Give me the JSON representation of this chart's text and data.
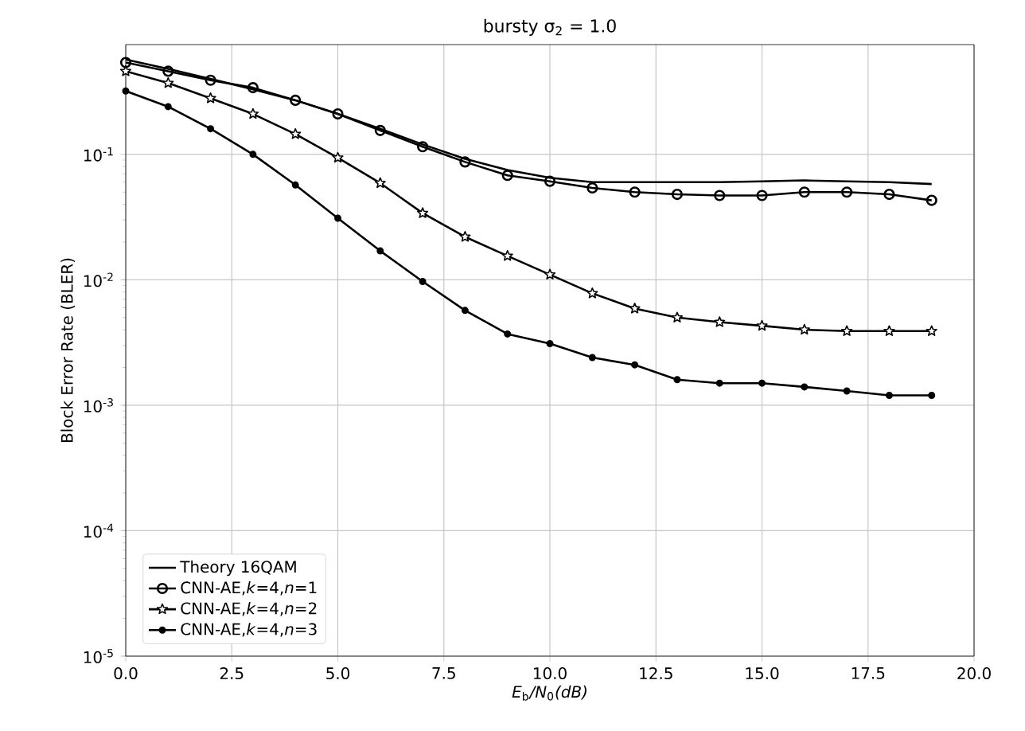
{
  "chart_data": {
    "type": "line",
    "title": "bursty σ$_{2}$ = 1.0",
    "xlabel": "*E*$_{b}$*/N*$_{0}$*(dB)*",
    "ylabel": "Block Error Rate (BLER)",
    "x": [
      0,
      1,
      2,
      3,
      4,
      5,
      6,
      7,
      8,
      9,
      10,
      11,
      12,
      13,
      14,
      15,
      16,
      17,
      18,
      19
    ],
    "series": [
      {
        "name": "Theory 16QAM",
        "color": "#000000",
        "marker": "none",
        "values": [
          0.57,
          0.48,
          0.4,
          0.33,
          0.27,
          0.21,
          0.16,
          0.12,
          0.092,
          0.075,
          0.065,
          0.06,
          0.06,
          0.06,
          0.06,
          0.061,
          0.062,
          0.061,
          0.06,
          0.058
        ]
      },
      {
        "name": "CNN-AE,*k*=4,*n*=1",
        "color": "#000000",
        "marker": "circle",
        "values": [
          0.54,
          0.46,
          0.39,
          0.34,
          0.27,
          0.21,
          0.155,
          0.115,
          0.087,
          0.068,
          0.061,
          0.054,
          0.05,
          0.048,
          0.047,
          0.047,
          0.05,
          0.05,
          0.048,
          0.043
        ]
      },
      {
        "name": "CNN-AE,*k*=4,*n*=2",
        "color": "#000000",
        "marker": "star",
        "values": [
          0.46,
          0.37,
          0.28,
          0.21,
          0.145,
          0.094,
          0.059,
          0.034,
          0.022,
          0.0155,
          0.011,
          0.0078,
          0.0059,
          0.005,
          0.0046,
          0.0043,
          0.004,
          0.0039,
          0.0039,
          0.0039
        ]
      },
      {
        "name": "CNN-AE,*k*=4,*n*=3",
        "color": "#000000",
        "marker": "dot",
        "values": [
          0.32,
          0.24,
          0.16,
          0.1,
          0.057,
          0.031,
          0.017,
          0.0097,
          0.0057,
          0.0037,
          0.0031,
          0.0024,
          0.0021,
          0.0016,
          0.0015,
          0.0015,
          0.0014,
          0.0013,
          0.0012,
          0.0012
        ]
      }
    ],
    "log": "y",
    "xlim": [
      0,
      20
    ],
    "ylim": [
      1e-05,
      0.75
    ],
    "xticks": [
      {
        "value": 0,
        "label": "0.0"
      },
      {
        "value": 2.5,
        "label": "2.5"
      },
      {
        "value": 5,
        "label": "5.0"
      },
      {
        "value": 7.5,
        "label": "7.5"
      },
      {
        "value": 10,
        "label": "10.0"
      },
      {
        "value": 12.5,
        "label": "12.5"
      },
      {
        "value": 15,
        "label": "15.0"
      },
      {
        "value": 17.5,
        "label": "17.5"
      },
      {
        "value": 20,
        "label": "20.0"
      }
    ],
    "yticks": [
      {
        "value": 1e-05,
        "label": "10$^{-5}$"
      },
      {
        "value": 0.0001,
        "label": "10$^{-4}$"
      },
      {
        "value": 0.001,
        "label": "10$^{-3}$"
      },
      {
        "value": 0.01,
        "label": "10$^{-2}$"
      },
      {
        "value": 0.1,
        "label": "10$^{-1}$"
      }
    ],
    "grid": true,
    "legend": "bottom left",
    "line_style": "solid"
  }
}
